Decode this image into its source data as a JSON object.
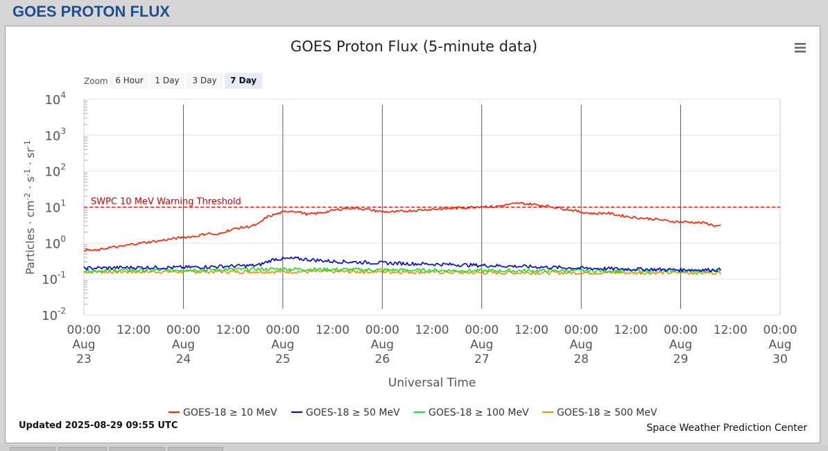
{
  "page": {
    "title": "GOES PROTON FLUX"
  },
  "chart_data": {
    "type": "line",
    "title": "GOES Proton Flux (5-minute data)",
    "xlabel": "Universal Time",
    "ylabel_parts": [
      "Particles",
      "cm",
      "-2",
      "s",
      "-1",
      "sr",
      "-1"
    ],
    "yscale": "log",
    "ylim": [
      0.01,
      10000
    ],
    "xlim": [
      "2025-08-23 00:00",
      "2025-08-30 00:00"
    ],
    "grid": true,
    "legend_position": "bottom-center",
    "zoom": {
      "label": "Zoom",
      "buttons": [
        "6 Hour",
        "1 Day",
        "3 Day",
        "7 Day"
      ],
      "selected": "7 Day"
    },
    "y_ticks": [
      {
        "base": "10",
        "exp": "4",
        "value": 10000
      },
      {
        "base": "10",
        "exp": "3",
        "value": 1000
      },
      {
        "base": "10",
        "exp": "2",
        "value": 100
      },
      {
        "base": "10",
        "exp": "1",
        "value": 10
      },
      {
        "base": "10",
        "exp": "0",
        "value": 1
      },
      {
        "base": "10",
        "exp": "-1",
        "value": 0.1
      },
      {
        "base": "10",
        "exp": "-2",
        "value": 0.01
      }
    ],
    "x_ticks": [
      {
        "time": "2025-08-23 00:00",
        "label": [
          "00:00",
          "Aug",
          "23"
        ]
      },
      {
        "time": "2025-08-23 12:00",
        "label": [
          "12:00"
        ]
      },
      {
        "time": "2025-08-24 00:00",
        "label": [
          "00:00",
          "Aug",
          "24"
        ]
      },
      {
        "time": "2025-08-24 12:00",
        "label": [
          "12:00"
        ]
      },
      {
        "time": "2025-08-25 00:00",
        "label": [
          "00:00",
          "Aug",
          "25"
        ]
      },
      {
        "time": "2025-08-25 12:00",
        "label": [
          "12:00"
        ]
      },
      {
        "time": "2025-08-26 00:00",
        "label": [
          "00:00",
          "Aug",
          "26"
        ]
      },
      {
        "time": "2025-08-26 12:00",
        "label": [
          "12:00"
        ]
      },
      {
        "time": "2025-08-27 00:00",
        "label": [
          "00:00",
          "Aug",
          "27"
        ]
      },
      {
        "time": "2025-08-27 12:00",
        "label": [
          "12:00"
        ]
      },
      {
        "time": "2025-08-28 00:00",
        "label": [
          "00:00",
          "Aug",
          "28"
        ]
      },
      {
        "time": "2025-08-28 12:00",
        "label": [
          "12:00"
        ]
      },
      {
        "time": "2025-08-29 00:00",
        "label": [
          "00:00",
          "Aug",
          "29"
        ]
      },
      {
        "time": "2025-08-29 12:00",
        "label": [
          "12:00"
        ]
      },
      {
        "time": "2025-08-30 00:00",
        "label": [
          "00:00",
          "Aug",
          "30"
        ]
      }
    ],
    "day_lines": [
      "2025-08-24 00:00",
      "2025-08-25 00:00",
      "2025-08-26 00:00",
      "2025-08-27 00:00",
      "2025-08-28 00:00",
      "2025-08-29 00:00"
    ],
    "threshold": {
      "value": 10,
      "label": "SWPC 10 MeV Warning Threshold",
      "color": "#cc0000"
    },
    "series": [
      {
        "name": "GOES-18 ≥ 10 MeV",
        "color": "#ff2000",
        "points": [
          [
            "2025-08-23 00:00",
            0.65
          ],
          [
            "2025-08-23 03:00",
            0.62
          ],
          [
            "2025-08-23 06:00",
            0.75
          ],
          [
            "2025-08-23 09:00",
            0.8
          ],
          [
            "2025-08-23 12:00",
            0.95
          ],
          [
            "2025-08-23 15:00",
            1.05
          ],
          [
            "2025-08-23 18:00",
            1.15
          ],
          [
            "2025-08-23 21:00",
            1.3
          ],
          [
            "2025-08-24 00:00",
            1.45
          ],
          [
            "2025-08-24 03:00",
            1.55
          ],
          [
            "2025-08-24 06:00",
            1.9
          ],
          [
            "2025-08-24 08:00",
            1.65
          ],
          [
            "2025-08-24 10:00",
            2.1
          ],
          [
            "2025-08-24 13:00",
            2.6
          ],
          [
            "2025-08-24 16:00",
            2.9
          ],
          [
            "2025-08-24 18:00",
            3.3
          ],
          [
            "2025-08-24 20:00",
            5.2
          ],
          [
            "2025-08-24 22:00",
            6.2
          ],
          [
            "2025-08-25 00:00",
            7.2
          ],
          [
            "2025-08-25 02:00",
            8.0
          ],
          [
            "2025-08-25 04:00",
            7.3
          ],
          [
            "2025-08-25 06:00",
            6.3
          ],
          [
            "2025-08-25 09:00",
            6.9
          ],
          [
            "2025-08-25 12:00",
            8.0
          ],
          [
            "2025-08-25 15:00",
            9.3
          ],
          [
            "2025-08-25 18:00",
            9.4
          ],
          [
            "2025-08-25 21:00",
            8.4
          ],
          [
            "2025-08-26 00:00",
            7.5
          ],
          [
            "2025-08-26 03:00",
            7.3
          ],
          [
            "2025-08-26 06:00",
            7.9
          ],
          [
            "2025-08-26 09:00",
            8.3
          ],
          [
            "2025-08-26 12:00",
            8.8
          ],
          [
            "2025-08-26 15:00",
            9.0
          ],
          [
            "2025-08-26 18:00",
            9.4
          ],
          [
            "2025-08-26 21:00",
            9.8
          ],
          [
            "2025-08-27 00:00",
            10.6
          ],
          [
            "2025-08-27 03:00",
            10.2
          ],
          [
            "2025-08-27 06:00",
            11.6
          ],
          [
            "2025-08-27 09:00",
            12.8
          ],
          [
            "2025-08-27 12:00",
            12.1
          ],
          [
            "2025-08-27 15:00",
            11.0
          ],
          [
            "2025-08-27 18:00",
            9.8
          ],
          [
            "2025-08-27 21:00",
            8.6
          ],
          [
            "2025-08-28 00:00",
            7.3
          ],
          [
            "2025-08-28 03:00",
            6.6
          ],
          [
            "2025-08-28 06:00",
            6.9
          ],
          [
            "2025-08-28 09:00",
            6.0
          ],
          [
            "2025-08-28 12:00",
            5.3
          ],
          [
            "2025-08-28 15:00",
            4.9
          ],
          [
            "2025-08-28 18:00",
            4.6
          ],
          [
            "2025-08-28 21:00",
            4.1
          ],
          [
            "2025-08-29 00:00",
            3.9
          ],
          [
            "2025-08-29 03:00",
            3.8
          ],
          [
            "2025-08-29 06:00",
            3.6
          ],
          [
            "2025-08-29 08:00",
            3.1
          ],
          [
            "2025-08-29 09:55",
            2.9
          ]
        ]
      },
      {
        "name": "GOES-18 ≥ 50 MeV",
        "color": "#0000dd",
        "points": [
          [
            "2025-08-23 00:00",
            0.2
          ],
          [
            "2025-08-23 12:00",
            0.21
          ],
          [
            "2025-08-24 00:00",
            0.21
          ],
          [
            "2025-08-24 12:00",
            0.23
          ],
          [
            "2025-08-24 18:00",
            0.24
          ],
          [
            "2025-08-24 22:00",
            0.36
          ],
          [
            "2025-08-25 03:00",
            0.37
          ],
          [
            "2025-08-25 06:00",
            0.35
          ],
          [
            "2025-08-25 12:00",
            0.31
          ],
          [
            "2025-08-26 00:00",
            0.28
          ],
          [
            "2025-08-26 12:00",
            0.26
          ],
          [
            "2025-08-27 00:00",
            0.24
          ],
          [
            "2025-08-27 12:00",
            0.22
          ],
          [
            "2025-08-28 00:00",
            0.2
          ],
          [
            "2025-08-28 12:00",
            0.19
          ],
          [
            "2025-08-29 00:00",
            0.18
          ],
          [
            "2025-08-29 09:55",
            0.18
          ]
        ]
      },
      {
        "name": "GOES-18 ≥ 100 MeV",
        "color": "#22dd22",
        "points": [
          [
            "2025-08-23 00:00",
            0.17
          ],
          [
            "2025-08-24 00:00",
            0.18
          ],
          [
            "2025-08-25 00:00",
            0.19
          ],
          [
            "2025-08-26 00:00",
            0.18
          ],
          [
            "2025-08-27 00:00",
            0.17
          ],
          [
            "2025-08-28 00:00",
            0.17
          ],
          [
            "2025-08-29 00:00",
            0.17
          ],
          [
            "2025-08-29 09:55",
            0.17
          ]
        ]
      },
      {
        "name": "GOES-18 ≥ 500 MeV",
        "color": "#e8900c",
        "points": [
          [
            "2025-08-23 00:00",
            0.16
          ],
          [
            "2025-08-24 00:00",
            0.16
          ],
          [
            "2025-08-25 00:00",
            0.16
          ],
          [
            "2025-08-26 00:00",
            0.16
          ],
          [
            "2025-08-27 00:00",
            0.15
          ],
          [
            "2025-08-28 00:00",
            0.15
          ],
          [
            "2025-08-29 00:00",
            0.15
          ],
          [
            "2025-08-29 09:55",
            0.15
          ]
        ]
      }
    ],
    "updated": "Updated 2025-08-29 09:55 UTC",
    "credit": "Space Weather Prediction Center"
  }
}
